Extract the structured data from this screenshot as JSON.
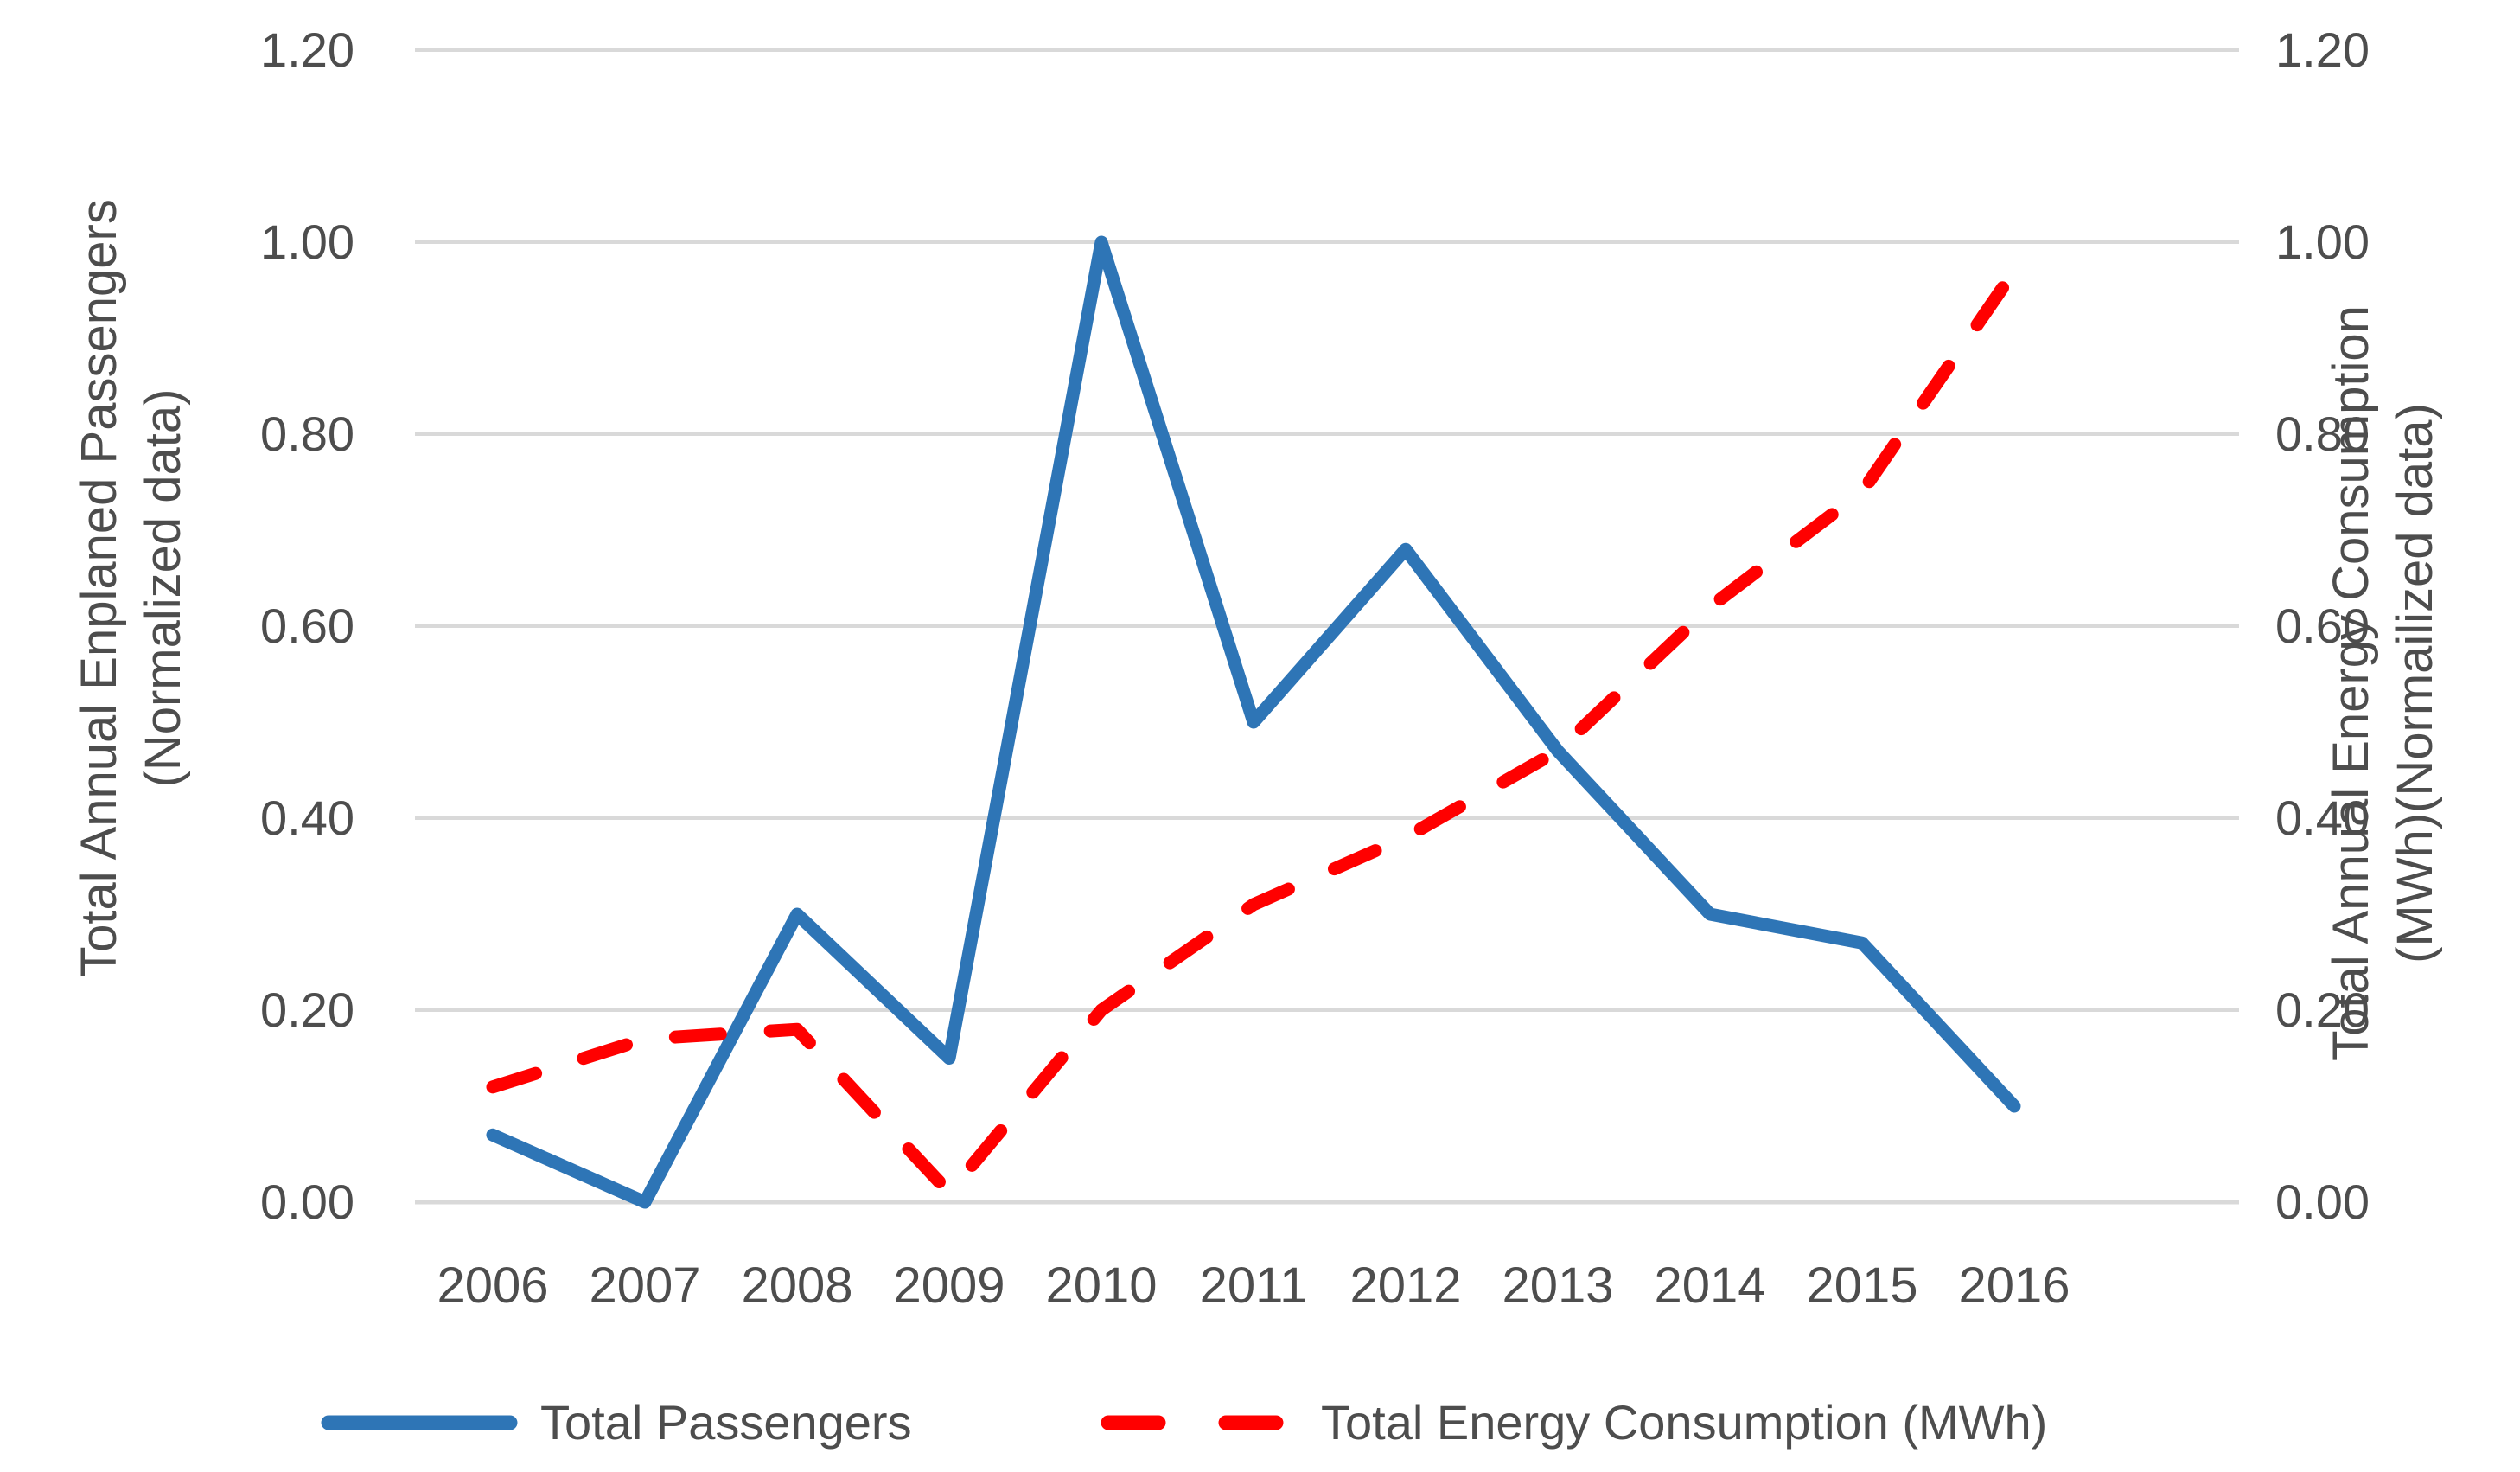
{
  "chart_data": {
    "type": "line",
    "x": [
      "2006",
      "2007",
      "2008",
      "2009",
      "2010",
      "2011",
      "2012",
      "2013",
      "2014",
      "2015",
      "2016"
    ],
    "series": [
      {
        "name": "Total Passengers",
        "axis": "left",
        "style": "solid",
        "color": "#2E75B6",
        "values": [
          0.07,
          0.0,
          0.3,
          0.15,
          1.0,
          0.5,
          0.68,
          0.47,
          0.3,
          0.27,
          0.1
        ]
      },
      {
        "name": "Total Energy Consumption (MWh)",
        "axis": "right",
        "style": "dashed",
        "color": "#FF0000",
        "values": [
          0.12,
          0.17,
          0.18,
          0.01,
          0.2,
          0.31,
          0.38,
          0.47,
          0.62,
          0.74,
          0.97
        ]
      }
    ],
    "left_axis": {
      "title_line1": "Total Annual Enplaned Passengers",
      "title_line2": "(Normalized data)",
      "ticks": [
        "0.00",
        "0.20",
        "0.40",
        "0.60",
        "0.80",
        "1.00",
        "1.20"
      ],
      "min": 0,
      "max": 1.2
    },
    "right_axis": {
      "title_line1": "Total Annual Energy Consumption",
      "title_line2": "(MWh)(Normailized data)",
      "ticks": [
        "0.00",
        "0.20",
        "0.40",
        "0.60",
        "0.80",
        "1.00",
        "1.20"
      ],
      "min": 0,
      "max": 1.2
    },
    "grid": true,
    "gridline_color": "#D9D9D9",
    "legend_position": "bottom"
  }
}
